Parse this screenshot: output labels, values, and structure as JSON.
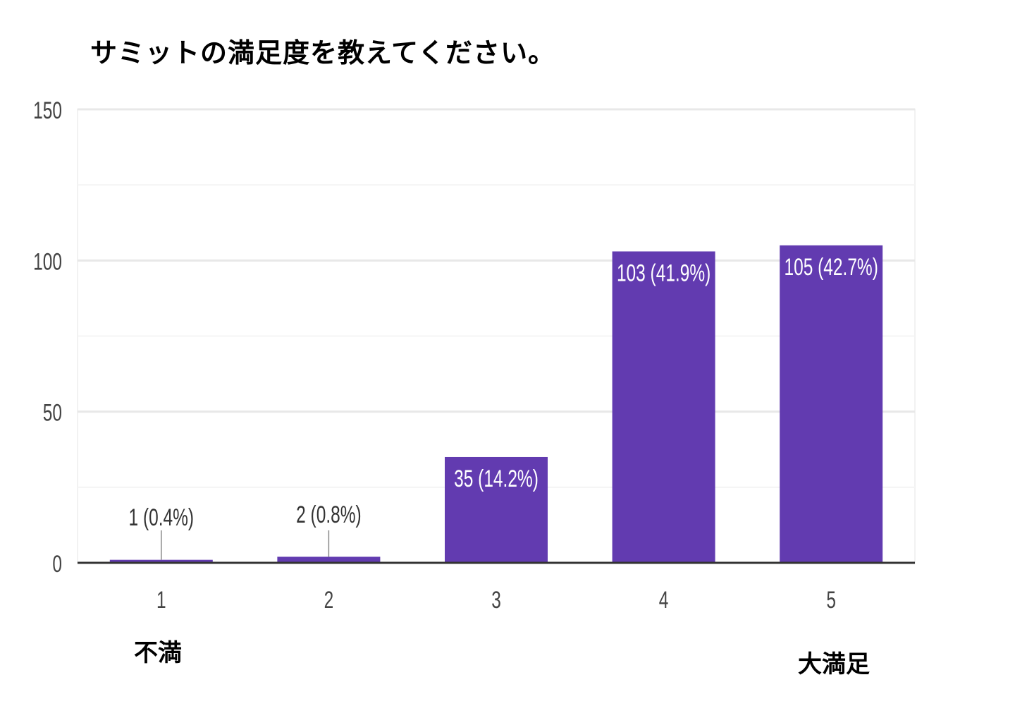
{
  "chart_data": {
    "type": "bar",
    "title": "サミットの満足度を教えてください。",
    "categories": [
      "1",
      "2",
      "3",
      "4",
      "5"
    ],
    "values": [
      1,
      2,
      35,
      103,
      105
    ],
    "data_labels": [
      "1 (0.4%)",
      "2 (0.8%)",
      "35 (14.2%)",
      "103 (41.9%)",
      "105 (42.7%)"
    ],
    "ylim": [
      0,
      150
    ],
    "yticks": [
      0,
      50,
      100,
      150
    ],
    "minor_grid_step": 25,
    "grid": true,
    "xlabel": "",
    "ylabel": "",
    "scale_low_label": "不満",
    "scale_high_label": "大満足",
    "bar_color": "#623bb0"
  }
}
